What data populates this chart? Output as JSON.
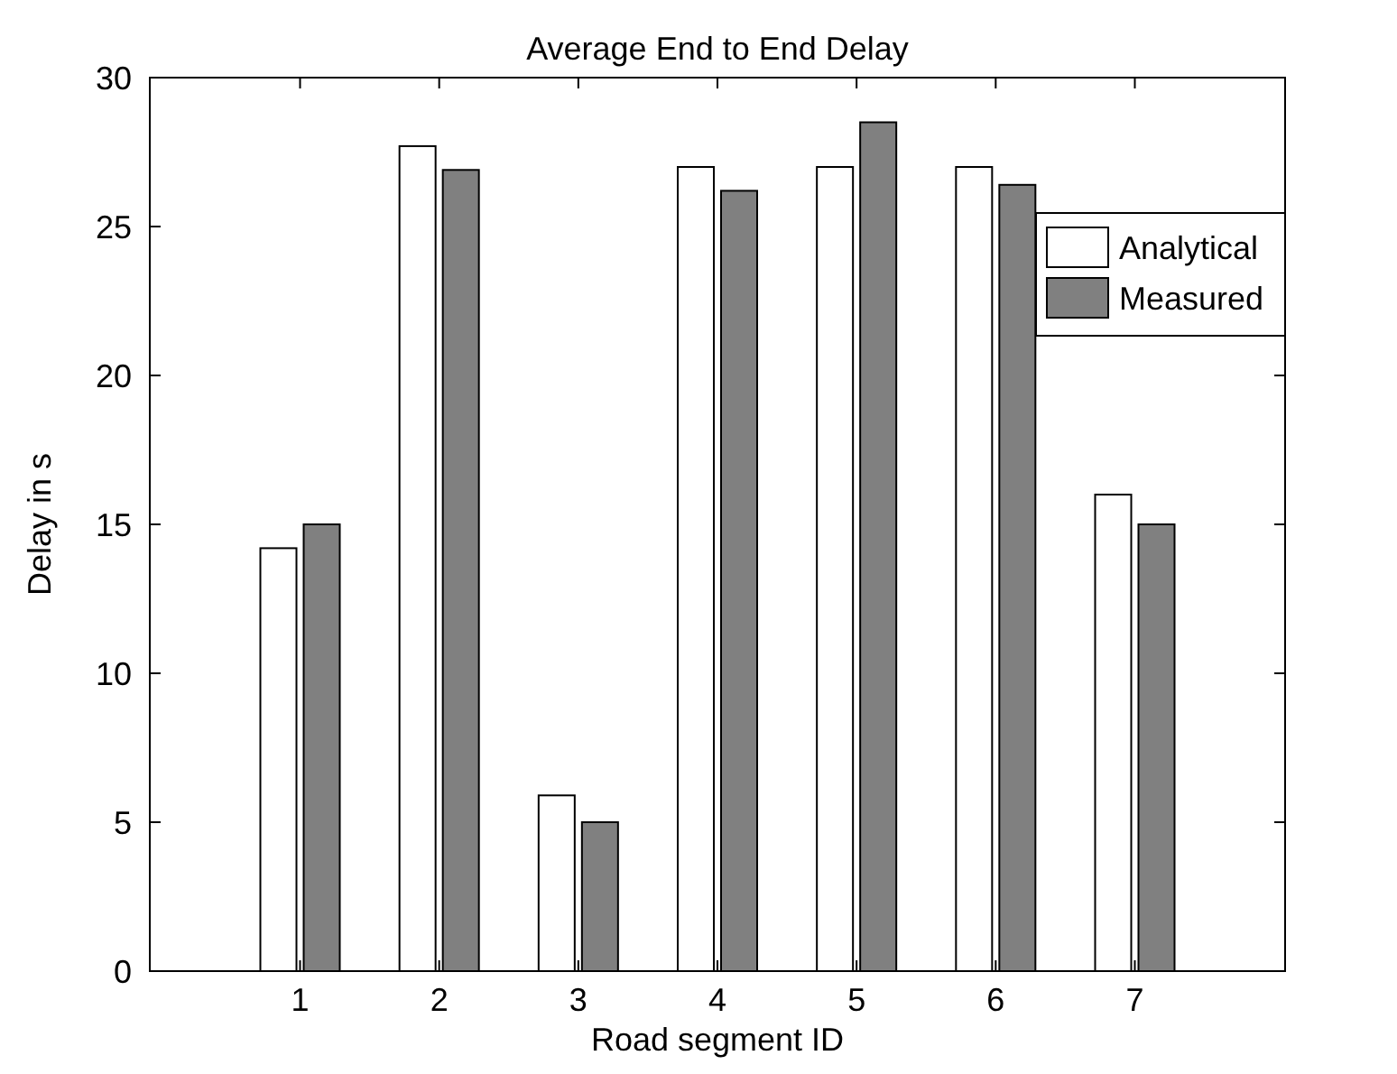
{
  "chart_data": {
    "type": "bar",
    "title": "Average End to End Delay",
    "xlabel": "Road segment ID",
    "ylabel": "Delay in s",
    "categories": [
      "1",
      "2",
      "3",
      "4",
      "5",
      "6",
      "7"
    ],
    "series": [
      {
        "name": "Analytical",
        "color": "#ffffff",
        "values": [
          14.2,
          27.7,
          5.9,
          27,
          27,
          27,
          16
        ]
      },
      {
        "name": "Measured",
        "color": "#808080",
        "values": [
          15,
          26.9,
          5,
          26.2,
          28.5,
          26.4,
          15
        ]
      }
    ],
    "ylim": [
      0,
      30
    ],
    "yticks": [
      0,
      5,
      10,
      15,
      20,
      25,
      30
    ],
    "grid": false,
    "legend": "top right"
  }
}
